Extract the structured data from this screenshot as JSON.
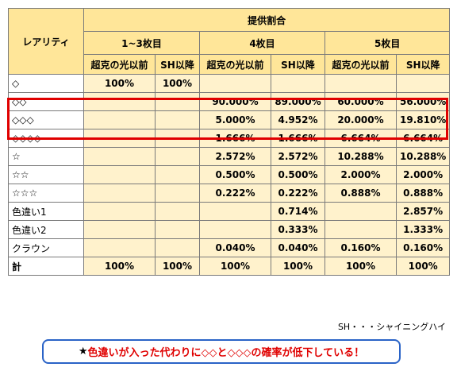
{
  "table": {
    "rarity_header": "レアリティ",
    "rate_header": "提供割合",
    "groups": [
      "1~3枚目",
      "4枚目",
      "5枚目"
    ],
    "subheaders": [
      "超克の光以前",
      "SH以降",
      "超克の光以前",
      "SH以降",
      "超克の光以前",
      "SH以降"
    ],
    "rows": [
      {
        "name": "◇",
        "cells": [
          "100%",
          "100%",
          "",
          "",
          "",
          ""
        ]
      },
      {
        "name": "◇◇",
        "cells": [
          "",
          "",
          "90.000%",
          "89.000%",
          "60.000%",
          "56.000%"
        ]
      },
      {
        "name": "◇◇◇",
        "cells": [
          "",
          "",
          "5.000%",
          "4.952%",
          "20.000%",
          "19.810%"
        ]
      },
      {
        "name": "◇◇◇◇",
        "cells": [
          "",
          "",
          "1.666%",
          "1.666%",
          "6.664%",
          "6.664%"
        ]
      },
      {
        "name": "☆",
        "cells": [
          "",
          "",
          "2.572%",
          "2.572%",
          "10.288%",
          "10.288%"
        ]
      },
      {
        "name": "☆☆",
        "cells": [
          "",
          "",
          "0.500%",
          "0.500%",
          "2.000%",
          "2.000%"
        ]
      },
      {
        "name": "☆☆☆",
        "cells": [
          "",
          "",
          "0.222%",
          "0.222%",
          "0.888%",
          "0.888%"
        ]
      },
      {
        "name": "色違い1",
        "cells": [
          "",
          "",
          "",
          "0.714%",
          "",
          "2.857%"
        ]
      },
      {
        "name": "色違い2",
        "cells": [
          "",
          "",
          "",
          "0.333%",
          "",
          "1.333%"
        ]
      },
      {
        "name": "クラウン",
        "cells": [
          "",
          "",
          "0.040%",
          "0.040%",
          "0.160%",
          "0.160%"
        ]
      },
      {
        "name": "計",
        "cells": [
          "100%",
          "100%",
          "100%",
          "100%",
          "100%",
          "100%"
        ]
      }
    ]
  },
  "note": "SH・・・シャイニングハイ",
  "alert": {
    "star": "★",
    "message": "色違いが入った代わりに◇◇と◇◇◇の確率が低下している！",
    "border_color": "#2a63c7",
    "text_color": "#e00000"
  },
  "colors": {
    "header_bg": "#ffe699",
    "cell_bg": "#fff2cc",
    "highlight": "#e00000"
  }
}
